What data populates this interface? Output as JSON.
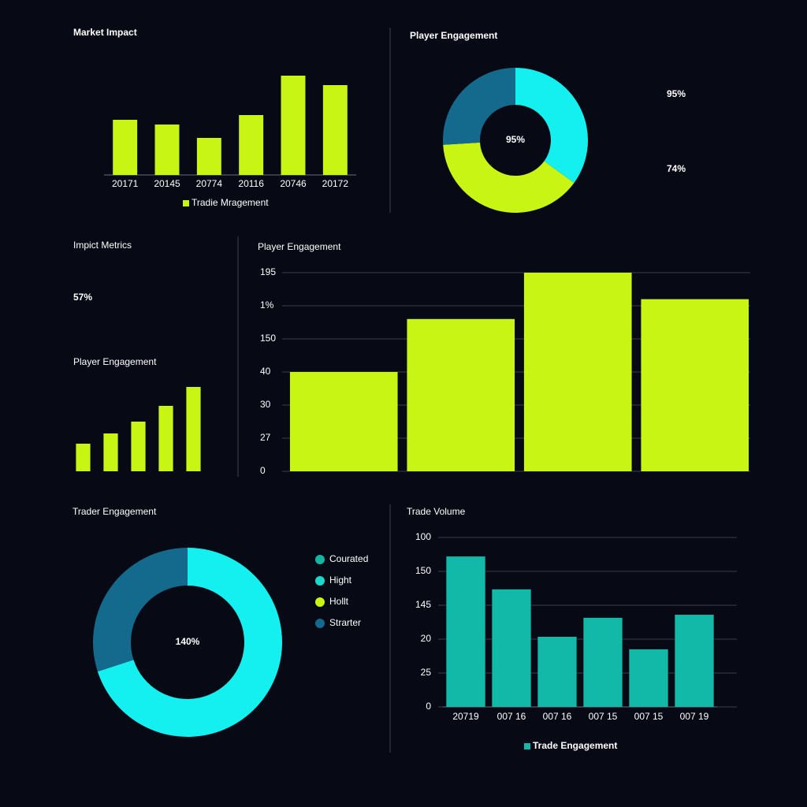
{
  "chart_data": [
    {
      "type": "bar",
      "title": "Market Impact",
      "categories": [
        "20171",
        "20145",
        "20774",
        "20116",
        "20746",
        "20172"
      ],
      "values": [
        70,
        64,
        47,
        76,
        126,
        114
      ],
      "color": "#c8f513",
      "legend": "Tradie Mragement"
    },
    {
      "type": "pie",
      "title": "Player Engagement",
      "values": [
        35,
        39,
        26
      ],
      "colors": [
        "#14f0f0",
        "#c8f513",
        "#146a8c"
      ],
      "center_label": "95%",
      "stats": [
        "95%",
        "74%"
      ]
    },
    {
      "type": "bar",
      "heading": "Impict Metrics",
      "stat": "57%",
      "title": "Player Engagement",
      "values": [
        35,
        48,
        63,
        83,
        107
      ],
      "color": "#c8f513"
    },
    {
      "type": "bar",
      "title": "Player Engagement",
      "values": [
        3,
        4.6,
        6,
        5.2
      ],
      "color": "#c8f513",
      "ylim": [
        0,
        6
      ],
      "yticks": [
        0,
        {
          "value": 1,
          "label": "27"
        },
        {
          "value": 2,
          "label": "30"
        },
        {
          "value": 3,
          "label": "40"
        },
        {
          "value": 4,
          "label": "150"
        },
        {
          "value": 5,
          "label": "1%"
        },
        {
          "value": 6,
          "label": "195"
        }
      ],
      "grid": true
    },
    {
      "type": "pie",
      "title": "Trader Engagement",
      "values": [
        70,
        30
      ],
      "colors": [
        "#14f0f0",
        "#146a8c"
      ],
      "center_label": "140%",
      "legend": [
        {
          "name": "Courated",
          "color": "#13b5a3"
        },
        {
          "name": "Hight",
          "color": "#1ad9c9"
        },
        {
          "name": "Hollt",
          "color": "#c8f513"
        },
        {
          "name": "Strarter",
          "color": "#146a8c"
        }
      ]
    },
    {
      "type": "bar",
      "title": "Trade Volume",
      "categories": [
        "20719",
        "007 16",
        "007 16",
        "007 15",
        "007 15",
        "007 19"
      ],
      "values": [
        4.44,
        3.47,
        2.07,
        2.63,
        1.7,
        2.72
      ],
      "color": "#12b8a8",
      "ylim": [
        0,
        5
      ],
      "yticks": [
        0,
        {
          "value": 1,
          "label": "25"
        },
        {
          "value": 2,
          "label": "20"
        },
        {
          "value": 3,
          "label": "145"
        },
        {
          "value": 4,
          "label": "150"
        },
        {
          "value": 5,
          "label": "100"
        }
      ],
      "grid": true,
      "legend": "Trade Engagement"
    }
  ]
}
